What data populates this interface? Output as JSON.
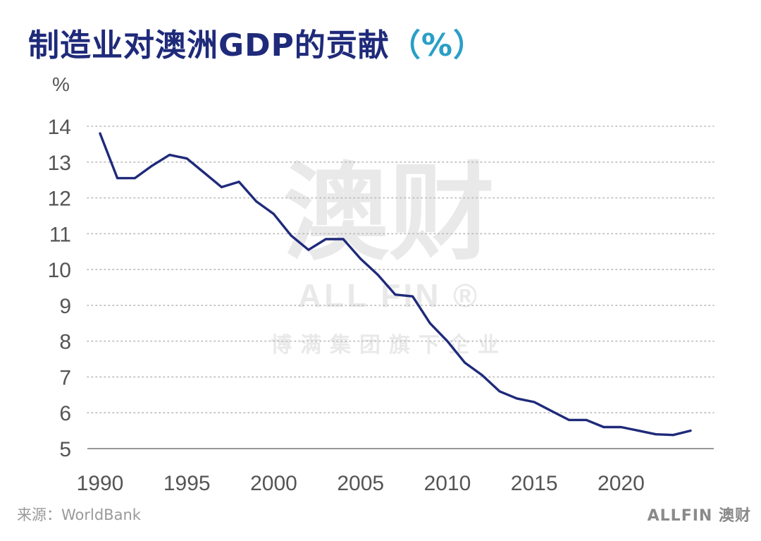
{
  "title": {
    "main": "制造业对澳洲GDP的贡献",
    "unit": "（%）"
  },
  "watermark": {
    "big": "澳财",
    "mid": "ALL FIN ®",
    "small": "博满集团旗下企业"
  },
  "footer": {
    "source": "来源：WorldBank",
    "brand": "ALLFIN 澳财"
  },
  "colors": {
    "line": "#1f2a7a",
    "grid": "#b9b9b9",
    "axis": "#999999",
    "tick_text": "#555555"
  },
  "chart_data": {
    "type": "line",
    "ylabel": "%",
    "ylim": [
      5,
      14
    ],
    "yticks": [
      5,
      6,
      7,
      8,
      9,
      10,
      11,
      12,
      13,
      14
    ],
    "xlim": [
      1990,
      2024
    ],
    "xticks": [
      1990,
      1995,
      2000,
      2005,
      2010,
      2015,
      2020
    ],
    "grid": "horizontal dotted",
    "x": [
      1990,
      1991,
      1992,
      1993,
      1994,
      1995,
      1996,
      1997,
      1998,
      1999,
      2000,
      2001,
      2002,
      2003,
      2004,
      2005,
      2006,
      2007,
      2008,
      2009,
      2010,
      2011,
      2012,
      2013,
      2014,
      2015,
      2016,
      2017,
      2018,
      2019,
      2020,
      2021,
      2022,
      2023,
      2024
    ],
    "y": [
      13.8,
      12.55,
      12.55,
      12.9,
      13.2,
      13.1,
      12.7,
      12.3,
      12.45,
      11.9,
      11.55,
      10.95,
      10.55,
      10.85,
      10.85,
      10.3,
      9.85,
      9.3,
      9.25,
      8.5,
      8.0,
      7.4,
      7.05,
      6.6,
      6.4,
      6.3,
      6.05,
      5.8,
      5.8,
      5.6,
      5.6,
      5.5,
      5.4,
      5.38,
      5.5
    ]
  }
}
